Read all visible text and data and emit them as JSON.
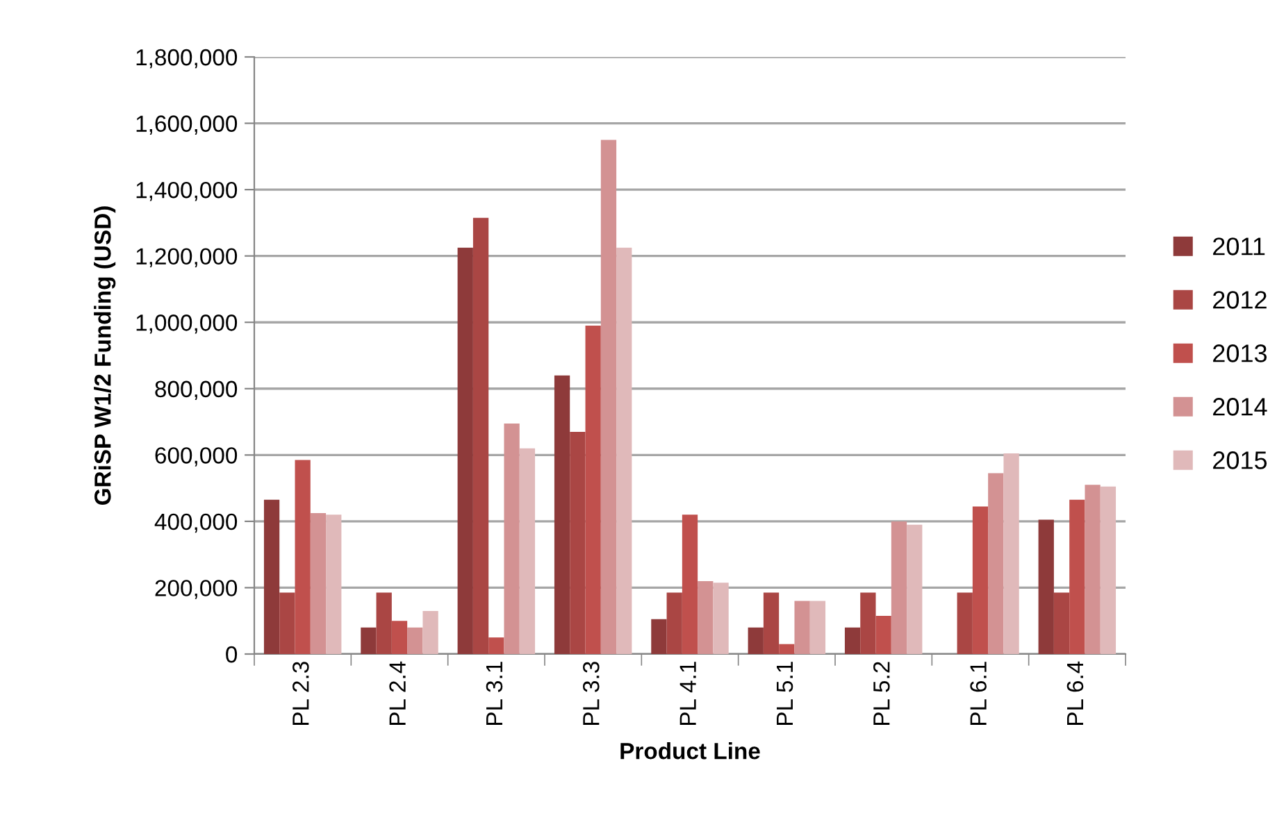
{
  "chart_data": {
    "type": "bar",
    "xlabel": "Product Line",
    "ylabel": "GRiSP W1/2 Funding (USD)",
    "categories": [
      "PL 2.3",
      "PL 2.4",
      "PL 3.1",
      "PL 3.3",
      "PL 4.1",
      "PL 5.1",
      "PL 5.2",
      "PL 6.1",
      "PL 6.4"
    ],
    "series": [
      {
        "name": "2011",
        "color": "#8e3a3a",
        "values": [
          465000,
          80000,
          1225000,
          840000,
          105000,
          80000,
          80000,
          null,
          405000
        ]
      },
      {
        "name": "2012",
        "color": "#aa4644",
        "values": [
          185000,
          185000,
          1315000,
          670000,
          185000,
          185000,
          185000,
          185000,
          185000
        ]
      },
      {
        "name": "2013",
        "color": "#c0504d",
        "values": [
          585000,
          100000,
          50000,
          990000,
          420000,
          30000,
          115000,
          445000,
          465000
        ]
      },
      {
        "name": "2014",
        "color": "#d39293",
        "values": [
          425000,
          80000,
          695000,
          1550000,
          220000,
          160000,
          400000,
          545000,
          510000
        ]
      },
      {
        "name": "2015",
        "color": "#e0b9ba",
        "values": [
          420000,
          130000,
          620000,
          1225000,
          215000,
          160000,
          390000,
          605000,
          505000
        ]
      }
    ],
    "ylim": [
      0,
      1800000
    ],
    "yticks": [
      {
        "value": 0,
        "label": "0"
      },
      {
        "value": 200000,
        "label": "200,000"
      },
      {
        "value": 400000,
        "label": "400,000"
      },
      {
        "value": 600000,
        "label": "600,000"
      },
      {
        "value": 800000,
        "label": "800,000"
      },
      {
        "value": 1000000,
        "label": "1,000,000"
      },
      {
        "value": 1200000,
        "label": "1,200,000"
      },
      {
        "value": 1400000,
        "label": "1,400,000"
      },
      {
        "value": 1600000,
        "label": "1,600,000"
      },
      {
        "value": 1800000,
        "label": "1,800,000"
      }
    ],
    "grid": "y",
    "legend": "right"
  }
}
